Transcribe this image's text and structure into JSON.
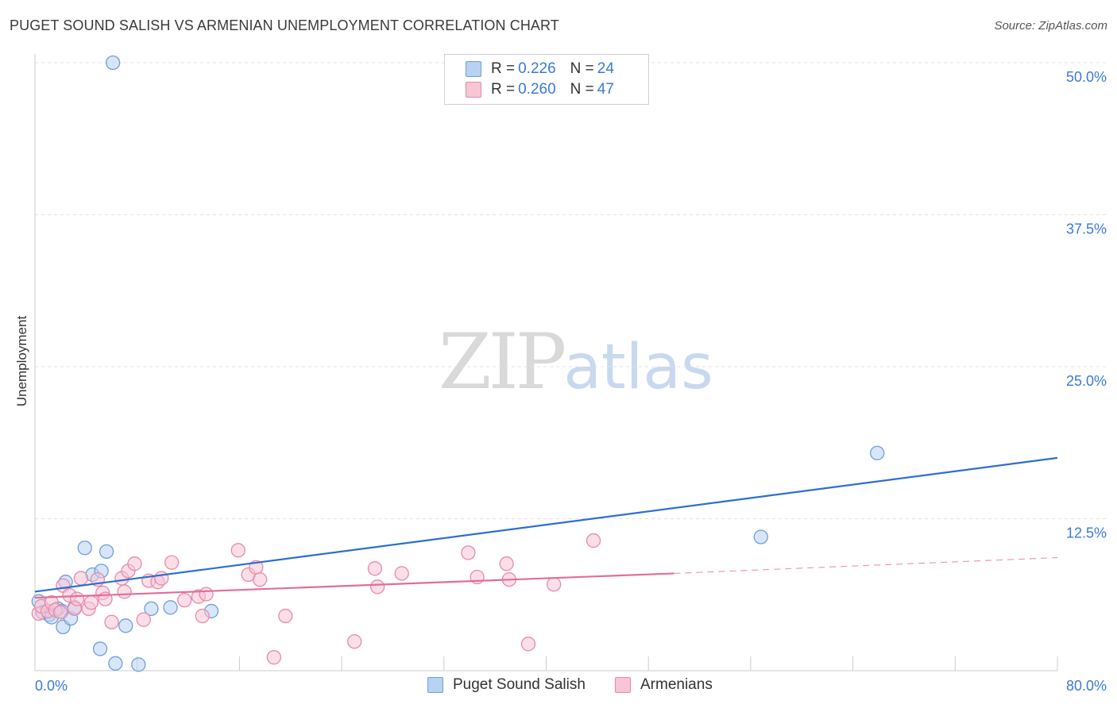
{
  "title": "PUGET SOUND SALISH VS ARMENIAN UNEMPLOYMENT CORRELATION CHART",
  "source": "Source: ZipAtlas.com",
  "watermark": {
    "zip": "ZIP",
    "atlas": "atlas"
  },
  "legend": {
    "rows": [
      {
        "r_label": "R =",
        "r_value": "0.226",
        "n_label": "N =",
        "n_value": "24"
      },
      {
        "r_label": "R =",
        "r_value": "0.260",
        "n_label": "N =",
        "n_value": "47"
      }
    ]
  },
  "colors": {
    "blue_fill": "#b8d2f2",
    "blue_stroke": "#6e9fd9",
    "blue_line": "#2b6fcf",
    "pink_fill": "#f8c5d5",
    "pink_stroke": "#e88aa8",
    "pink_line": "#e26d96",
    "grid": "#e2e2e2",
    "tick_label": "#3a7ad4"
  },
  "chart_data": {
    "type": "scatter",
    "title": "PUGET SOUND SALISH VS ARMENIAN UNEMPLOYMENT CORRELATION CHART",
    "xlabel": "",
    "ylabel": "Unemployment",
    "xlim": [
      0,
      80
    ],
    "ylim": [
      0,
      50
    ],
    "x_tick_labels": [
      "0.0%",
      "80.0%"
    ],
    "y_ticks": [
      12.5,
      25.0,
      37.5,
      50.0
    ],
    "y_tick_labels": [
      "12.5%",
      "25.0%",
      "37.5%",
      "50.0%"
    ],
    "grid": true,
    "legend_position": "bottom",
    "series": [
      {
        "name": "Puget Sound Salish",
        "color": "blue",
        "points": [
          [
            6.1,
            50.0
          ],
          [
            0.3,
            5.7
          ],
          [
            0.6,
            4.8
          ],
          [
            1.1,
            4.6
          ],
          [
            1.3,
            4.4
          ],
          [
            1.8,
            5.1
          ],
          [
            2.1,
            4.9
          ],
          [
            2.2,
            3.6
          ],
          [
            2.4,
            7.3
          ],
          [
            2.8,
            4.3
          ],
          [
            3.1,
            5.2
          ],
          [
            3.9,
            10.1
          ],
          [
            4.5,
            7.9
          ],
          [
            5.2,
            8.2
          ],
          [
            5.6,
            9.8
          ],
          [
            5.1,
            1.8
          ],
          [
            6.3,
            0.6
          ],
          [
            7.1,
            3.7
          ],
          [
            8.1,
            0.5
          ],
          [
            9.1,
            5.1
          ],
          [
            10.6,
            5.2
          ],
          [
            13.8,
            4.9
          ],
          [
            56.8,
            11.0
          ],
          [
            65.9,
            17.9
          ]
        ],
        "trend": {
          "x": [
            0,
            80
          ],
          "y": [
            6.5,
            17.5
          ]
        }
      },
      {
        "name": "Armenians",
        "color": "pink",
        "points": [
          [
            0.3,
            4.7
          ],
          [
            0.5,
            5.3
          ],
          [
            1.0,
            4.9
          ],
          [
            1.3,
            5.6
          ],
          [
            1.6,
            5.0
          ],
          [
            2.0,
            4.8
          ],
          [
            2.2,
            7.0
          ],
          [
            2.7,
            6.2
          ],
          [
            3.1,
            5.1
          ],
          [
            3.3,
            5.9
          ],
          [
            3.6,
            7.6
          ],
          [
            4.2,
            5.1
          ],
          [
            4.4,
            5.6
          ],
          [
            4.9,
            7.5
          ],
          [
            5.3,
            6.4
          ],
          [
            5.5,
            5.9
          ],
          [
            6.0,
            4.0
          ],
          [
            6.8,
            7.6
          ],
          [
            7.0,
            6.5
          ],
          [
            7.3,
            8.2
          ],
          [
            7.8,
            8.8
          ],
          [
            8.5,
            4.2
          ],
          [
            8.9,
            7.4
          ],
          [
            9.6,
            7.3
          ],
          [
            9.9,
            7.6
          ],
          [
            10.7,
            8.9
          ],
          [
            11.7,
            5.8
          ],
          [
            12.8,
            6.1
          ],
          [
            13.1,
            4.5
          ],
          [
            13.4,
            6.3
          ],
          [
            15.9,
            9.9
          ],
          [
            16.7,
            7.9
          ],
          [
            17.3,
            8.5
          ],
          [
            17.6,
            7.5
          ],
          [
            18.7,
            1.1
          ],
          [
            19.6,
            4.5
          ],
          [
            25.0,
            2.4
          ],
          [
            26.6,
            8.4
          ],
          [
            26.8,
            6.9
          ],
          [
            28.7,
            8.0
          ],
          [
            33.9,
            9.7
          ],
          [
            34.6,
            7.7
          ],
          [
            36.9,
            8.8
          ],
          [
            37.1,
            7.5
          ],
          [
            38.6,
            2.2
          ],
          [
            40.6,
            7.1
          ],
          [
            43.7,
            10.7
          ]
        ],
        "trend": {
          "x": [
            0,
            50
          ],
          "y": [
            6.0,
            8.0
          ]
        },
        "trend_dashed": {
          "x": [
            50,
            80
          ],
          "y": [
            8.0,
            9.3
          ]
        }
      }
    ]
  }
}
